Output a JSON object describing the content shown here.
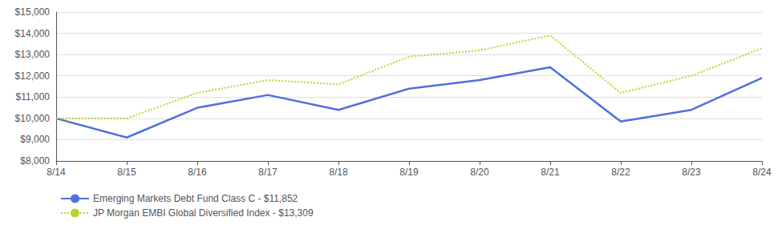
{
  "chart_data": {
    "type": "line",
    "categories": [
      "8/14",
      "8/15",
      "8/16",
      "8/17",
      "8/18",
      "8/19",
      "8/20",
      "8/21",
      "8/22",
      "8/23",
      "8/24"
    ],
    "series": [
      {
        "name": "Emerging Markets Debt Fund Class C - $11,852",
        "line_style": "solid",
        "values": [
          10000,
          9100,
          10500,
          11100,
          10400,
          11400,
          11800,
          12400,
          9850,
          10400,
          11900
        ]
      },
      {
        "name": "JP Morgan EMBI Global Diversified Index - $13,309",
        "line_style": "dotted",
        "values": [
          10000,
          10000,
          11200,
          11800,
          11600,
          12900,
          13200,
          13900,
          11200,
          12000,
          13300
        ]
      }
    ],
    "ylim": [
      8000,
      15000
    ],
    "yticks": [
      {
        "value": 8000,
        "label": "$8,000"
      },
      {
        "value": 9000,
        "label": "$9,000"
      },
      {
        "value": 10000,
        "label": "$10,000"
      },
      {
        "value": 11000,
        "label": "$11,000"
      },
      {
        "value": 12000,
        "label": "$12,000"
      },
      {
        "value": 13000,
        "label": "$13,000"
      },
      {
        "value": 14000,
        "label": "$14,000"
      },
      {
        "value": 15000,
        "label": "$15,000"
      }
    ],
    "grid": true,
    "legend": "lower left"
  }
}
